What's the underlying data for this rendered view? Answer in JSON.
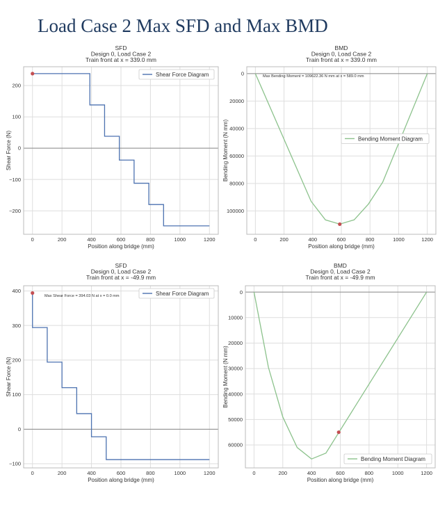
{
  "page": {
    "title": "Load Case 2 Max SFD and Max BMD"
  },
  "colors": {
    "sfd_line": "#4c72b0",
    "bmd_line": "#8cc28c",
    "marker": "#c44e52",
    "grid": "#dedede",
    "frame": "#bbbbbb",
    "zero_line": "#888888"
  },
  "chart_data": [
    {
      "type": "line",
      "title": [
        "SFD",
        "Design 0, Load Case 2",
        "Train front at x = 339.0 mm"
      ],
      "xlabel": "Position along bridge (mm)",
      "ylabel": "Shear Force (N)",
      "xlim": [
        -60,
        1260
      ],
      "ylim": [
        -275,
        260
      ],
      "xticks": [
        0,
        200,
        400,
        600,
        800,
        1000,
        1200
      ],
      "yticks": [
        -200,
        -100,
        0,
        100,
        200
      ],
      "ytick_labels": [
        "−200",
        "−100",
        "0",
        "100",
        "200"
      ],
      "invert_y": false,
      "grid": true,
      "legend": "top-right",
      "series": [
        {
          "name": "Shear Force Diagram",
          "x": [
            0,
            389,
            389,
            489,
            489,
            589,
            589,
            689,
            689,
            789,
            789,
            889,
            889,
            1200
          ],
          "y": [
            238,
            238,
            138,
            138,
            38,
            38,
            -38,
            -38,
            -112,
            -112,
            -180,
            -180,
            -248,
            -248
          ]
        }
      ],
      "marker": {
        "x": 0,
        "y": 238
      },
      "annotation": ""
    },
    {
      "type": "line",
      "title": [
        "BMD",
        "Design 0, Load Case 2",
        "Train front at x = 339.0 mm"
      ],
      "xlabel": "Position along bridge (mm)",
      "ylabel": "Bending Moment (N mm)",
      "xlim": [
        -60,
        1260
      ],
      "ylim": [
        -5000,
        117000
      ],
      "xticks": [
        0,
        200,
        400,
        600,
        800,
        1000,
        1200
      ],
      "yticks": [
        0,
        20000,
        40000,
        60000,
        80000,
        100000
      ],
      "ytick_labels": [
        "0",
        "20000",
        "40000",
        "60000",
        "80000",
        "100000"
      ],
      "invert_y": true,
      "grid": true,
      "legend": "center-right",
      "series": [
        {
          "name": "Bending Moment Diagram",
          "x": [
            0,
            389,
            489,
            589,
            689,
            789,
            889,
            1200
          ],
          "y": [
            0,
            93000,
            106500,
            109600,
            106500,
            95000,
            79000,
            0
          ]
        }
      ],
      "marker": {
        "x": 589,
        "y": 109622.36
      },
      "annotation": "Max Bending Moment = 109622.36 N mm at x = 589.0 mm"
    },
    {
      "type": "line",
      "title": [
        "SFD",
        "Design 0, Load Case 2",
        "Train front at x = -49.9 mm"
      ],
      "xlabel": "Position along bridge (mm)",
      "ylabel": "Shear Force (N)",
      "xlim": [
        -60,
        1260
      ],
      "ylim": [
        -112,
        415
      ],
      "xticks": [
        0,
        200,
        400,
        600,
        800,
        1000,
        1200
      ],
      "yticks": [
        -100,
        0,
        100,
        200,
        300,
        400
      ],
      "ytick_labels": [
        "−100",
        "0",
        "100",
        "200",
        "300",
        "400"
      ],
      "invert_y": false,
      "grid": true,
      "legend": "top-right",
      "series": [
        {
          "name": "Shear Force Diagram",
          "x": [
            0,
            0,
            100,
            100,
            200,
            200,
            300,
            300,
            400,
            400,
            500,
            500,
            1200
          ],
          "y": [
            394,
            294,
            294,
            194,
            194,
            120,
            120,
            45,
            45,
            -22,
            -22,
            -88,
            -88
          ]
        }
      ],
      "marker": {
        "x": 0,
        "y": 394.03
      },
      "annotation": "Max Shear Force = 394.03 N at x = 0.0 mm"
    },
    {
      "type": "line",
      "title": [
        "BMD",
        "Design 0, Load Case 2",
        "Train front at x = -49.9 mm"
      ],
      "xlabel": "Position along bridge (mm)",
      "ylabel": "Bending Moment (N mm)",
      "xlim": [
        -60,
        1260
      ],
      "ylim": [
        -2500,
        69000
      ],
      "xticks": [
        0,
        200,
        400,
        600,
        800,
        1000,
        1200
      ],
      "yticks": [
        0,
        10000,
        20000,
        30000,
        40000,
        50000,
        60000
      ],
      "ytick_labels": [
        "0",
        "10000",
        "20000",
        "30000",
        "40000",
        "50000",
        "60000"
      ],
      "invert_y": true,
      "grid": true,
      "legend": "bottom-right",
      "series": [
        {
          "name": "Bending Moment Diagram",
          "x": [
            0,
            100,
            200,
            300,
            400,
            500,
            1200
          ],
          "y": [
            0,
            29500,
            49000,
            61000,
            65500,
            63200,
            0
          ]
        }
      ],
      "marker": {
        "x": 589,
        "y": 55000
      },
      "annotation": ""
    }
  ]
}
